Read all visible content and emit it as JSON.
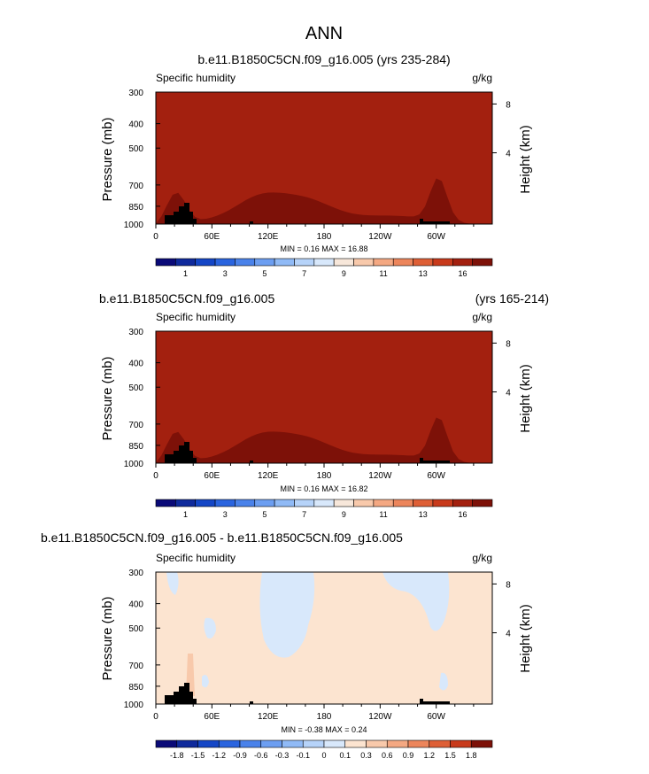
{
  "figure_title": "ANN",
  "chart_data": [
    {
      "type": "heatmap",
      "title": "b.e11.B1850C5CN.f09_g16.005 (yrs 235-284)",
      "variable_label": "Specific humidity",
      "units_label": "g/kg",
      "xlabel": "",
      "ylabel": "Pressure (mb)",
      "y2label": "Height (km)",
      "x_ticks": [
        "0",
        "60E",
        "120E",
        "180",
        "120W",
        "60W"
      ],
      "y_ticks": [
        "300",
        "400",
        "500",
        "700",
        "850",
        "1000"
      ],
      "y_values": [
        300,
        400,
        500,
        700,
        850,
        1000
      ],
      "y2_ticks": [
        "8",
        "4"
      ],
      "stats": "MIN =  0.16  MAX = 16.88",
      "levels": [
        "1",
        "3",
        "5",
        "7",
        "9",
        "11",
        "13",
        "16"
      ],
      "colors": [
        "#0a0a78",
        "#0f2a9c",
        "#1446c6",
        "#2a64df",
        "#4a82ea",
        "#6c9ef1",
        "#90baf6",
        "#b6d3f9",
        "#d8e8fb",
        "#f7e7da",
        "#f8c9ab",
        "#f4a882",
        "#ec855b",
        "#de5f36",
        "#c83a1b",
        "#a3200f",
        "#7d1108"
      ]
    },
    {
      "type": "heatmap",
      "title": "b.e11.B1850C5CN.f09_g16.005",
      "title_right": "(yrs 165-214)",
      "variable_label": "Specific humidity",
      "units_label": "g/kg",
      "xlabel": "",
      "ylabel": "Pressure (mb)",
      "y2label": "Height (km)",
      "x_ticks": [
        "0",
        "60E",
        "120E",
        "180",
        "120W",
        "60W"
      ],
      "y_ticks": [
        "300",
        "400",
        "500",
        "700",
        "850",
        "1000"
      ],
      "y_values": [
        300,
        400,
        500,
        700,
        850,
        1000
      ],
      "y2_ticks": [
        "8",
        "4"
      ],
      "stats": "MIN =  0.16  MAX = 16.82",
      "levels": [
        "1",
        "3",
        "5",
        "7",
        "9",
        "11",
        "13",
        "16"
      ],
      "colors": [
        "#0a0a78",
        "#0f2a9c",
        "#1446c6",
        "#2a64df",
        "#4a82ea",
        "#6c9ef1",
        "#90baf6",
        "#b6d3f9",
        "#d8e8fb",
        "#f7e7da",
        "#f8c9ab",
        "#f4a882",
        "#ec855b",
        "#de5f36",
        "#c83a1b",
        "#a3200f",
        "#7d1108"
      ]
    },
    {
      "type": "heatmap",
      "title": "b.e11.B1850C5CN.f09_g16.005 - b.e11.B1850C5CN.f09_g16.005",
      "variable_label": "Specific humidity",
      "units_label": "g/kg",
      "xlabel": "",
      "ylabel": "Pressure (mb)",
      "y2label": "Height (km)",
      "x_ticks": [
        "0",
        "60E",
        "120E",
        "180",
        "120W",
        "60W"
      ],
      "y_ticks": [
        "300",
        "400",
        "500",
        "700",
        "850",
        "1000"
      ],
      "y_values": [
        300,
        400,
        500,
        700,
        850,
        1000
      ],
      "y2_ticks": [
        "8",
        "4"
      ],
      "stats": "MIN = -0.38  MAX =  0.24",
      "levels": [
        "-1.8",
        "-1.5",
        "-1.2",
        "-0.9",
        "-0.6",
        "-0.3",
        "-0.1",
        "0",
        "0.1",
        "0.3",
        "0.6",
        "0.9",
        "1.2",
        "1.5",
        "1.8"
      ],
      "colors": [
        "#0a0a78",
        "#0f2a9c",
        "#1446c6",
        "#2a64df",
        "#4a82ea",
        "#6c9ef1",
        "#90baf6",
        "#b6d3f9",
        "#d8e8fb",
        "#fce4d0",
        "#f8c9ab",
        "#f4a882",
        "#ec855b",
        "#de5f36",
        "#c83a1b",
        "#7d1108"
      ],
      "background_color": "#fce4d0",
      "negative_color": "#d8e8fb"
    }
  ]
}
